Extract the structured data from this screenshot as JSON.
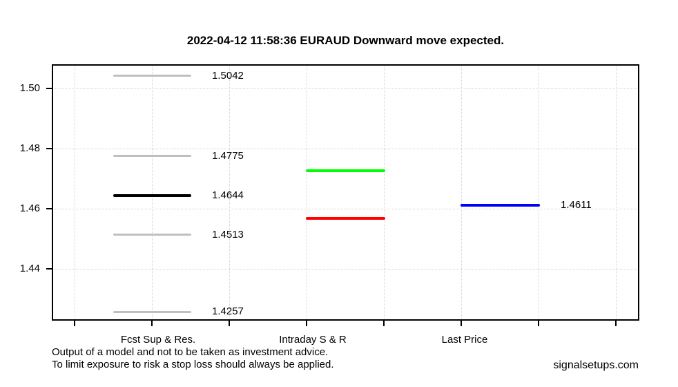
{
  "title": "2022-04-12 11:58:36 EURAUD Downward move expected.",
  "footer": {
    "disclaimer_line1": "Output of a model and not to be taken as investment advice.",
    "disclaimer_line2": "To limit exposure to risk a stop loss should always be applied.",
    "watermark": "signalsetups.com"
  },
  "chart_data": {
    "type": "line",
    "subtype": "horizontal-price-level-segments",
    "title": "2022-04-12 11:58:36 EURAUD Downward move expected.",
    "xlabel": "",
    "ylabel": "",
    "ylim": [
      1.423,
      1.508
    ],
    "grid": true,
    "legend": "none",
    "yticks": [
      {
        "value": 1.5,
        "label": "1.50"
      },
      {
        "value": 1.48,
        "label": "1.48"
      },
      {
        "value": 1.46,
        "label": "1.46"
      },
      {
        "value": 1.44,
        "label": "1.44"
      }
    ],
    "categories": [
      "Fcst Sup & Res.",
      "Intraday S & R",
      "Last Price"
    ],
    "series": [
      {
        "name": "Fcst Sup & Res.",
        "levels": [
          {
            "value": 1.5042,
            "label": "1.5042",
            "color": "#bfbfbf",
            "lwd": 3
          },
          {
            "value": 1.4775,
            "label": "1.4775",
            "color": "#bfbfbf",
            "lwd": 3
          },
          {
            "value": 1.4644,
            "label": "1.4644",
            "color": "#000000",
            "lwd": 4
          },
          {
            "value": 1.4513,
            "label": "1.4513",
            "color": "#bfbfbf",
            "lwd": 3
          },
          {
            "value": 1.4257,
            "label": "1.4257",
            "color": "#bfbfbf",
            "lwd": 3
          }
        ]
      },
      {
        "name": "Intraday S & R",
        "levels": [
          {
            "value": 1.4726,
            "label": "",
            "color": "#00ff00",
            "lwd": 4
          },
          {
            "value": 1.4567,
            "label": "",
            "color": "#ff0000",
            "lwd": 4
          }
        ]
      },
      {
        "name": "Last Price",
        "levels": [
          {
            "value": 1.4611,
            "label": "1.4611",
            "color": "#0000ff",
            "lwd": 4
          }
        ]
      }
    ]
  }
}
